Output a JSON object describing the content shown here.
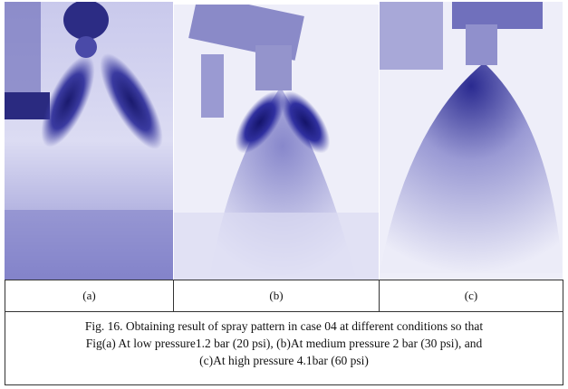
{
  "figure": {
    "panels": [
      {
        "label": "(a)"
      },
      {
        "label": "(b)"
      },
      {
        "label": "(c)"
      }
    ],
    "caption": {
      "lines": [
        "Fig. 16. Obtaining result of spray pattern in case 04 at different conditions so that",
        "Fig(a) At low pressure1.2 bar (20 psi), (b)At medium pressure 2 bar (30 psi), and",
        "(c)At high pressure 4.1bar (60 psi)"
      ]
    }
  }
}
